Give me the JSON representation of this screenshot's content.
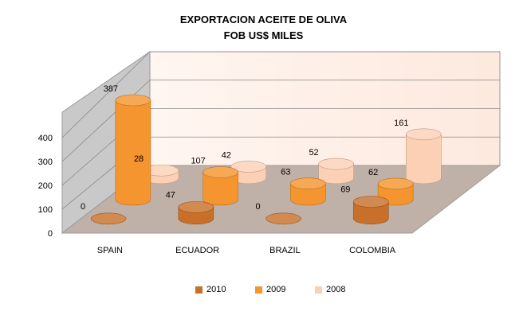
{
  "chart_data": {
    "type": "bar",
    "title": "EXPORTACION ACEITE DE OLIVA",
    "subtitle": "FOB US$ MILES",
    "categories": [
      "SPAIN",
      "ECUADOR",
      "BRAZIL",
      "COLOMBIA"
    ],
    "series": [
      {
        "name": "2010",
        "values": [
          0,
          47,
          0,
          69
        ],
        "color": "#c8702a"
      },
      {
        "name": "2009",
        "values": [
          387,
          107,
          63,
          62
        ],
        "color": "#f4952f"
      },
      {
        "name": "2008",
        "values": [
          28,
          42,
          52,
          161
        ],
        "color": "#fcd0b4"
      }
    ],
    "ylim": [
      0,
      400
    ],
    "yticks": [
      "0",
      "100",
      "200",
      "300",
      "400"
    ],
    "xlabel": "",
    "ylabel": "",
    "legend_position": "bottom",
    "grid": true
  }
}
